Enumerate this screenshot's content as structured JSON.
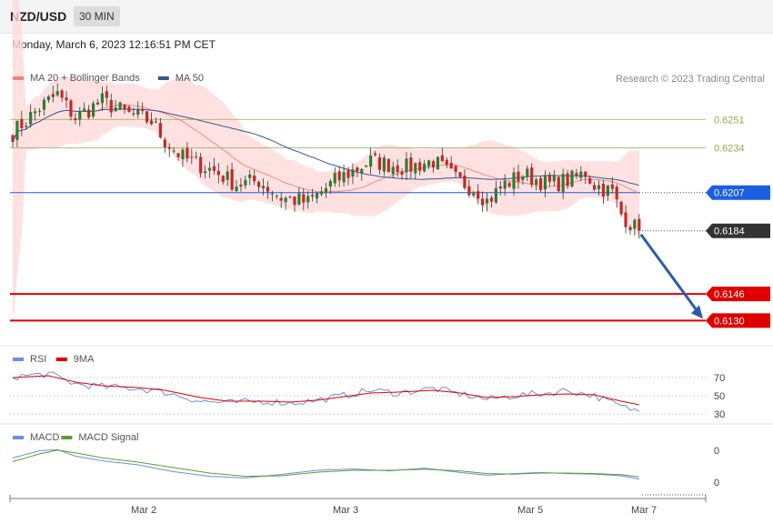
{
  "header": {
    "symbol": "NZD/USD",
    "timeframe": "30 MIN"
  },
  "timestamp": "Monday, March 6, 2023 12:16:51 PM CET",
  "credit": "Research © 2023 Trading Central",
  "colors": {
    "bollinger": "#f08080",
    "band_fill": "#ffdada",
    "ma50": "#34598f",
    "resistance": "#88b04b",
    "pivot": "#1a5fe0",
    "support": "#e00000",
    "last": "#333333",
    "bull": "#2e7d32",
    "bear": "#c62828",
    "rsi": "#6b8ee0",
    "rsi_ma": "#e00000",
    "macd": "#6b8ee0",
    "macd_signal": "#5aa02c",
    "arrow": "#2d5da8"
  },
  "chart_data": [
    {
      "type": "candlestick",
      "legend": [
        "MA 20 + Bollinger Bands",
        "MA 50"
      ],
      "ylim": [
        0.6116,
        0.629
      ],
      "x_ticks": [
        "Mar 2",
        "Mar 3",
        "Mar 5",
        "Mar 7"
      ],
      "levels": [
        {
          "value": 0.6251,
          "label": "0.6251",
          "kind": "resistance"
        },
        {
          "value": 0.6234,
          "label": "0.6234",
          "kind": "resistance"
        },
        {
          "value": 0.6207,
          "label": "0.6207",
          "kind": "pivot"
        },
        {
          "value": 0.6184,
          "label": "0.6184",
          "kind": "last"
        },
        {
          "value": 0.6146,
          "label": "0.6146",
          "kind": "support"
        },
        {
          "value": 0.613,
          "label": "0.6130",
          "kind": "support"
        }
      ],
      "anchors": [
        [
          0,
          0.6243
        ],
        [
          6,
          0.6258
        ],
        [
          10,
          0.6266
        ],
        [
          14,
          0.6252
        ],
        [
          20,
          0.6262
        ],
        [
          26,
          0.6254
        ],
        [
          31,
          0.625
        ],
        [
          34,
          0.6238
        ],
        [
          38,
          0.6228
        ],
        [
          45,
          0.622
        ],
        [
          50,
          0.6212
        ],
        [
          55,
          0.6214
        ],
        [
          60,
          0.6204
        ],
        [
          66,
          0.6201
        ],
        [
          72,
          0.6214
        ],
        [
          80,
          0.6226
        ],
        [
          88,
          0.6222
        ],
        [
          94,
          0.6226
        ],
        [
          99,
          0.6215
        ],
        [
          104,
          0.6208
        ],
        [
          106,
          0.6202
        ],
        [
          110,
          0.6212
        ],
        [
          114,
          0.6218
        ],
        [
          120,
          0.6212
        ],
        [
          125,
          0.6215
        ],
        [
          128,
          0.6219
        ],
        [
          130,
          0.6212
        ],
        [
          134,
          0.6207
        ],
        [
          136,
          0.6194
        ],
        [
          139,
          0.6186
        ],
        [
          140,
          0.6184
        ]
      ],
      "projection": {
        "from": 0.6184,
        "to": 0.613
      }
    },
    {
      "type": "line",
      "legend": [
        "RSI",
        "9MA"
      ],
      "ylim": [
        25,
        75
      ],
      "y_ticks": [
        70,
        50,
        30
      ],
      "rsi": [
        [
          0,
          71
        ],
        [
          8,
          74
        ],
        [
          14,
          63
        ],
        [
          20,
          60
        ],
        [
          28,
          58
        ],
        [
          34,
          54
        ],
        [
          42,
          44
        ],
        [
          48,
          42
        ],
        [
          56,
          44
        ],
        [
          62,
          42
        ],
        [
          68,
          45
        ],
        [
          74,
          50
        ],
        [
          80,
          56
        ],
        [
          86,
          53
        ],
        [
          94,
          58
        ],
        [
          100,
          52
        ],
        [
          106,
          46
        ],
        [
          112,
          50
        ],
        [
          118,
          52
        ],
        [
          124,
          56
        ],
        [
          130,
          50
        ],
        [
          136,
          38
        ],
        [
          140,
          33
        ]
      ],
      "ma9": [
        [
          0,
          70
        ],
        [
          8,
          72
        ],
        [
          14,
          65
        ],
        [
          20,
          61
        ],
        [
          28,
          59
        ],
        [
          34,
          56
        ],
        [
          42,
          48
        ],
        [
          48,
          44
        ],
        [
          56,
          44
        ],
        [
          62,
          43
        ],
        [
          68,
          45
        ],
        [
          74,
          49
        ],
        [
          80,
          53
        ],
        [
          86,
          54
        ],
        [
          94,
          56
        ],
        [
          100,
          53
        ],
        [
          106,
          48
        ],
        [
          112,
          49
        ],
        [
          118,
          51
        ],
        [
          124,
          52
        ],
        [
          130,
          51
        ],
        [
          136,
          44
        ],
        [
          140,
          40
        ]
      ]
    },
    {
      "type": "line",
      "legend": [
        "MACD",
        "MACD Signal"
      ],
      "y_ticks": [
        "0",
        "0"
      ],
      "macd": [
        [
          0,
          0.55
        ],
        [
          6,
          0.82
        ],
        [
          10,
          0.86
        ],
        [
          14,
          0.62
        ],
        [
          20,
          0.45
        ],
        [
          28,
          0.3
        ],
        [
          36,
          0.05
        ],
        [
          44,
          -0.12
        ],
        [
          52,
          -0.18
        ],
        [
          60,
          -0.05
        ],
        [
          68,
          0.1
        ],
        [
          76,
          0.15
        ],
        [
          84,
          0.08
        ],
        [
          92,
          0.18
        ],
        [
          100,
          0.02
        ],
        [
          106,
          -0.08
        ],
        [
          112,
          -0.02
        ],
        [
          118,
          0.02
        ],
        [
          124,
          -0.02
        ],
        [
          130,
          -0.04
        ],
        [
          136,
          -0.1
        ],
        [
          140,
          -0.22
        ]
      ],
      "signal": [
        [
          0,
          0.42
        ],
        [
          6,
          0.7
        ],
        [
          10,
          0.84
        ],
        [
          14,
          0.74
        ],
        [
          20,
          0.56
        ],
        [
          28,
          0.4
        ],
        [
          36,
          0.2
        ],
        [
          44,
          0.0
        ],
        [
          52,
          -0.12
        ],
        [
          60,
          -0.1
        ],
        [
          68,
          0.03
        ],
        [
          76,
          0.1
        ],
        [
          84,
          0.1
        ],
        [
          92,
          0.14
        ],
        [
          100,
          0.08
        ],
        [
          106,
          -0.02
        ],
        [
          112,
          -0.04
        ],
        [
          118,
          0.0
        ],
        [
          124,
          0.0
        ],
        [
          130,
          -0.02
        ],
        [
          136,
          -0.06
        ],
        [
          140,
          -0.14
        ]
      ]
    }
  ]
}
